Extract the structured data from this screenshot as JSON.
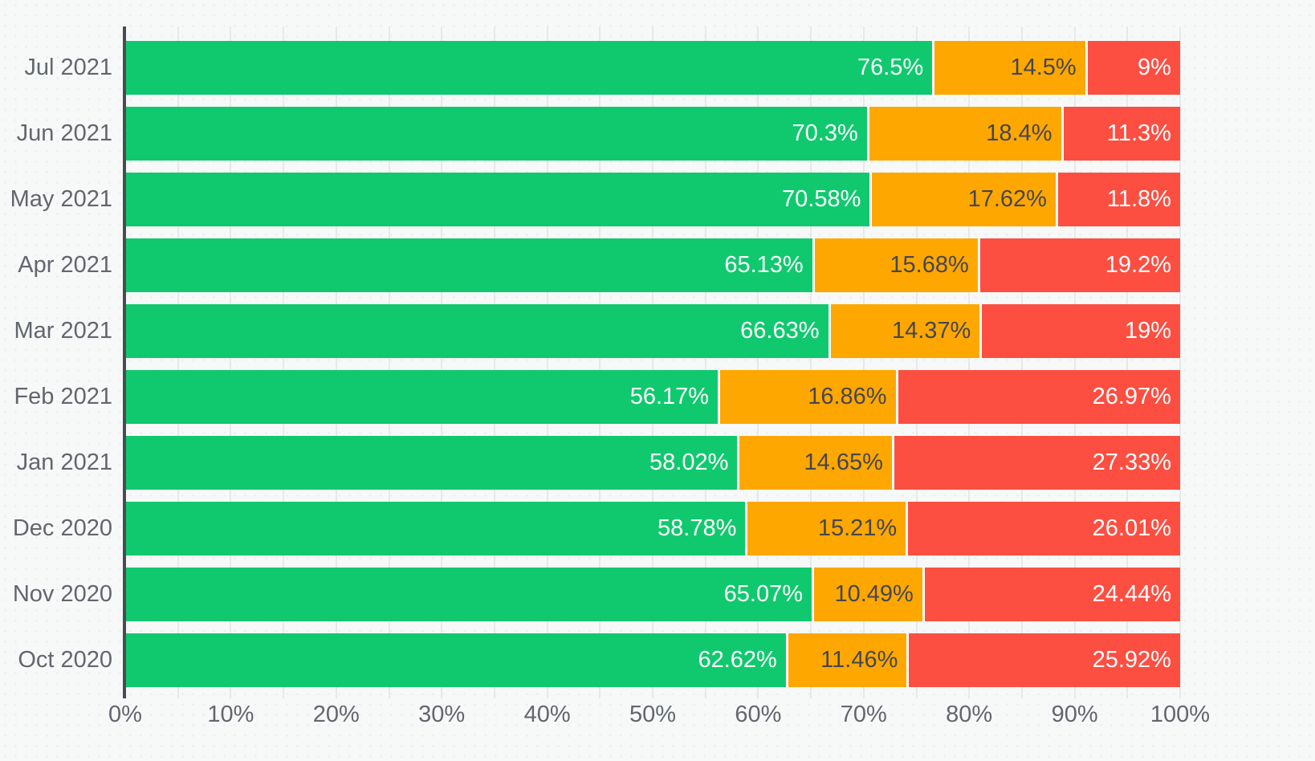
{
  "colors": {
    "background": "#f7f8f8",
    "grid": "#e7e8ea",
    "axis_line": "#484b53",
    "tick_text": "#63666e",
    "segment_separator": "#ffffff"
  },
  "chart_data": {
    "type": "bar",
    "orientation": "horizontal",
    "stacked": true,
    "title": "",
    "xlabel": "",
    "ylabel": "",
    "grid": "minor vertical lines every 5%",
    "legend": "none",
    "x_axis": {
      "min": 0,
      "max": 100,
      "major_tick_step": 10,
      "minor_grid_step": 5,
      "tick_labels": [
        "0%",
        "10%",
        "20%",
        "30%",
        "40%",
        "50%",
        "60%",
        "70%",
        "80%",
        "90%",
        "100%"
      ]
    },
    "categories": [
      "Jul 2021",
      "Jun 2021",
      "May 2021",
      "Apr 2021",
      "Mar 2021",
      "Feb 2021",
      "Jan 2021",
      "Dec 2020",
      "Nov 2020",
      "Oct 2020"
    ],
    "series": [
      {
        "id": "green",
        "color": "#10c96e",
        "label_text_color": "#ffffff",
        "values": [
          76.5,
          70.3,
          70.58,
          65.13,
          66.63,
          56.17,
          58.02,
          58.78,
          65.07,
          62.62
        ],
        "labels": [
          "76.5%",
          "70.3%",
          "70.58%",
          "65.13%",
          "66.63%",
          "56.17%",
          "58.02%",
          "58.78%",
          "65.07%",
          "62.62%"
        ]
      },
      {
        "id": "orange",
        "color": "#fea700",
        "label_text_color": "#46464f",
        "values": [
          14.5,
          18.4,
          17.62,
          15.68,
          14.37,
          16.86,
          14.65,
          15.21,
          10.49,
          11.46
        ],
        "labels": [
          "14.5%",
          "18.4%",
          "17.62%",
          "15.68%",
          "14.37%",
          "16.86%",
          "14.65%",
          "15.21%",
          "10.49%",
          "11.46%"
        ]
      },
      {
        "id": "red",
        "color": "#fc4f42",
        "label_text_color": "#ffffff",
        "values": [
          9,
          11.3,
          11.8,
          19.2,
          19,
          26.97,
          27.33,
          26.01,
          24.44,
          25.92
        ],
        "labels": [
          "9%",
          "11.3%",
          "11.8%",
          "19.2%",
          "19%",
          "26.97%",
          "27.33%",
          "26.01%",
          "24.44%",
          "25.92%"
        ]
      }
    ]
  }
}
